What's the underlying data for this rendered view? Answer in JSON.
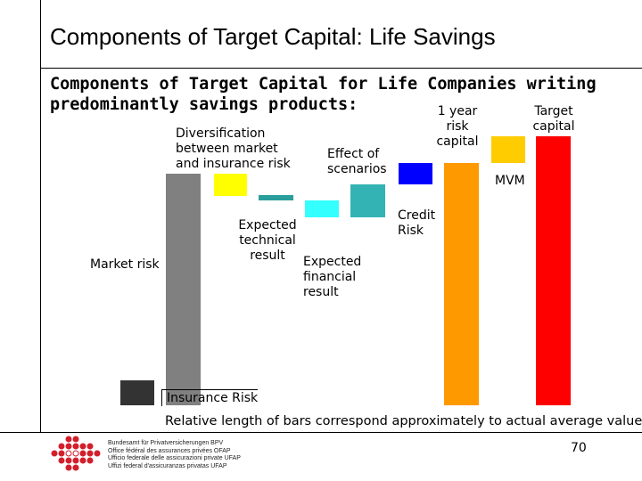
{
  "header": {
    "title": "Components of Target Capital: Life Savings"
  },
  "heading": [
    "Components of Target Capital for Life Companies writing",
    "predominantly savings products:"
  ],
  "labels": {
    "diversification": [
      "Diversification",
      "between market",
      "and insurance risk"
    ],
    "scenarios": [
      "Effect of",
      "scenarios"
    ],
    "one_year": [
      "1 year",
      "risk",
      "capital"
    ],
    "target": [
      "Target",
      "capital"
    ],
    "mvm": "MVM",
    "credit": [
      "Credit",
      "Risk"
    ],
    "technical": [
      "Expected",
      "technical",
      "result"
    ],
    "financial": [
      "Expected",
      "financial",
      "result"
    ],
    "market": "Market risk",
    "insurance": "Insurance Risk"
  },
  "note": "Relative length of bars correspond approximately to actual average values",
  "page_number": "70",
  "logo": [
    "Bundesamt für Privatversicherungen BPV",
    "Office fédéral des assurances privées OFAP",
    "Ufficio federale delle assicurazioni private UFAP",
    "Uffizi federal d'assicuranzas privatas UFAP"
  ]
}
